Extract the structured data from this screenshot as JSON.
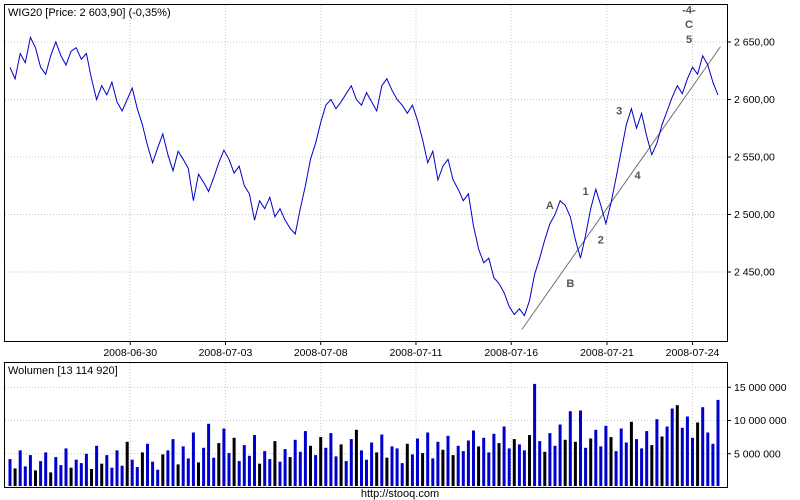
{
  "page": {
    "footer": "http://stooq.com"
  },
  "chart_data": [
    {
      "type": "line",
      "name": "price-chart",
      "title": "WIG20 [Price: 2 603,90] (-0,35%)",
      "ylim": [
        2390,
        2683
      ],
      "line_color": "#0000cc",
      "annotation_color": "#555555",
      "grid": "dotted",
      "legend_position": "none",
      "y_ticks": [
        {
          "label": "2 650,00",
          "value": 2650
        },
        {
          "label": "2 600,00",
          "value": 2600
        },
        {
          "label": "2 550,00",
          "value": 2550
        },
        {
          "label": "2 500,00",
          "value": 2500
        },
        {
          "label": "2 450,00",
          "value": 2450
        }
      ],
      "x_ticks": [
        {
          "label": "2008-06-30",
          "i": 23.6
        },
        {
          "label": "2008-07-03",
          "i": 42.3
        },
        {
          "label": "2008-07-08",
          "i": 61
        },
        {
          "label": "2008-07-11",
          "i": 79.7
        },
        {
          "label": "2008-07-16",
          "i": 98.4
        },
        {
          "label": "2008-07-21",
          "i": 117.2
        },
        {
          "label": "2008-07-24",
          "i": 134
        }
      ],
      "series": [
        {
          "name": "WIG20",
          "values": [
            2628,
            2618,
            2640,
            2632,
            2654,
            2645,
            2628,
            2622,
            2638,
            2650,
            2638,
            2630,
            2642,
            2645,
            2635,
            2640,
            2618,
            2600,
            2612,
            2604,
            2615,
            2598,
            2590,
            2600,
            2610,
            2592,
            2578,
            2560,
            2545,
            2558,
            2570,
            2552,
            2538,
            2555,
            2548,
            2540,
            2512,
            2535,
            2528,
            2520,
            2532,
            2545,
            2556,
            2548,
            2536,
            2542,
            2525,
            2518,
            2495,
            2512,
            2505,
            2515,
            2498,
            2505,
            2495,
            2488,
            2483,
            2505,
            2525,
            2548,
            2562,
            2580,
            2595,
            2600,
            2592,
            2598,
            2605,
            2612,
            2600,
            2595,
            2606,
            2598,
            2590,
            2612,
            2618,
            2608,
            2600,
            2595,
            2588,
            2595,
            2582,
            2565,
            2545,
            2555,
            2530,
            2542,
            2548,
            2530,
            2522,
            2512,
            2518,
            2490,
            2470,
            2458,
            2462,
            2445,
            2440,
            2432,
            2420,
            2413,
            2418,
            2412,
            2425,
            2448,
            2462,
            2478,
            2492,
            2500,
            2512,
            2508,
            2498,
            2478,
            2462,
            2482,
            2505,
            2522,
            2508,
            2492,
            2510,
            2532,
            2555,
            2578,
            2592,
            2575,
            2588,
            2568,
            2552,
            2562,
            2578,
            2590,
            2602,
            2612,
            2605,
            2618,
            2628,
            2622,
            2638,
            2630,
            2615,
            2603.9
          ]
        }
      ],
      "trendline": {
        "i1": 100.5,
        "p1": 2400,
        "i2": 139.5,
        "p2": 2646,
        "color": "#707070"
      },
      "annotations": [
        {
          "label": "A",
          "i": 106,
          "price": 2508
        },
        {
          "label": "B",
          "i": 110,
          "price": 2440
        },
        {
          "label": "1",
          "i": 113,
          "price": 2520
        },
        {
          "label": "2",
          "i": 116,
          "price": 2478
        },
        {
          "label": "3",
          "i": 119.6,
          "price": 2590
        },
        {
          "label": "4",
          "i": 123.2,
          "price": 2534
        },
        {
          "label": "-4-",
          "i": 133.3,
          "price": 2678
        },
        {
          "label": "C",
          "i": 133.3,
          "price": 2665
        },
        {
          "label": "5",
          "i": 133.3,
          "price": 2652
        }
      ]
    },
    {
      "type": "bar",
      "name": "volume-chart",
      "title": "Wolumen [13 114 920]",
      "unit": "millions",
      "ylim": [
        0,
        18.8
      ],
      "bar_colors": {
        "up": "#0000cc",
        "down": "#000000"
      },
      "y_ticks": [
        {
          "label": "5 000 000",
          "value": 5
        },
        {
          "label": "10 000 000",
          "value": 10
        },
        {
          "label": "15 000 000",
          "value": 15
        }
      ],
      "colors": "bkbbbkbbkbbbkbbbkbkbbbbkbbkbbbkbbkbbbkbbbkbbkbbbbkbbkbbkbbbkbkbbbkbbkbbbkbkbbbkbbkbbbkbkbbbbkbbbkbbkbbkbbkbbbkbkbbkbbbkbbbkbbbkbkbbkbbbkbbbb",
      "values": [
        4.2,
        2.8,
        5.5,
        3.1,
        4.8,
        2.5,
        3.9,
        5.2,
        2.2,
        4.5,
        3.3,
        5.8,
        2.9,
        4.1,
        3.6,
        5.0,
        2.7,
        6.2,
        3.5,
        4.8,
        2.9,
        5.5,
        3.2,
        6.8,
        4.1,
        3.0,
        5.2,
        6.5,
        3.8,
        2.6,
        4.9,
        5.5,
        7.2,
        3.4,
        6.1,
        4.3,
        8.2,
        3.7,
        5.9,
        9.5,
        4.4,
        6.6,
        8.8,
        5.1,
        7.4,
        3.9,
        6.3,
        4.7,
        7.8,
        3.5,
        5.4,
        4.2,
        6.9,
        3.8,
        5.7,
        4.5,
        7.1,
        5.3,
        8.4,
        6.2,
        4.8,
        7.5,
        5.9,
        8.1,
        4.6,
        6.4,
        3.9,
        7.2,
        8.6,
        5.5,
        4.1,
        6.7,
        5.2,
        7.9,
        4.4,
        6.1,
        5.8,
        3.6,
        6.5,
        4.9,
        7.3,
        5.1,
        8.2,
        4.3,
        6.8,
        5.6,
        7.7,
        4.8,
        6.2,
        5.4,
        7.0,
        8.5,
        6.1,
        7.4,
        5.2,
        8.0,
        6.6,
        9.1,
        5.8,
        7.2,
        6.4,
        5.5,
        7.8,
        15.5,
        6.9,
        5.3,
        8.1,
        6.2,
        9.4,
        7.1,
        11.4,
        6.8,
        11.5,
        5.9,
        7.3,
        8.6,
        6.1,
        9.2,
        7.5,
        5.4,
        8.8,
        6.7,
        9.8,
        7.2,
        5.8,
        8.4,
        6.3,
        10.2,
        7.6,
        9.1,
        11.8,
        12.3,
        8.9,
        10.6,
        7.4,
        9.7,
        12.0,
        8.2,
        6.5,
        13.1
      ]
    }
  ]
}
